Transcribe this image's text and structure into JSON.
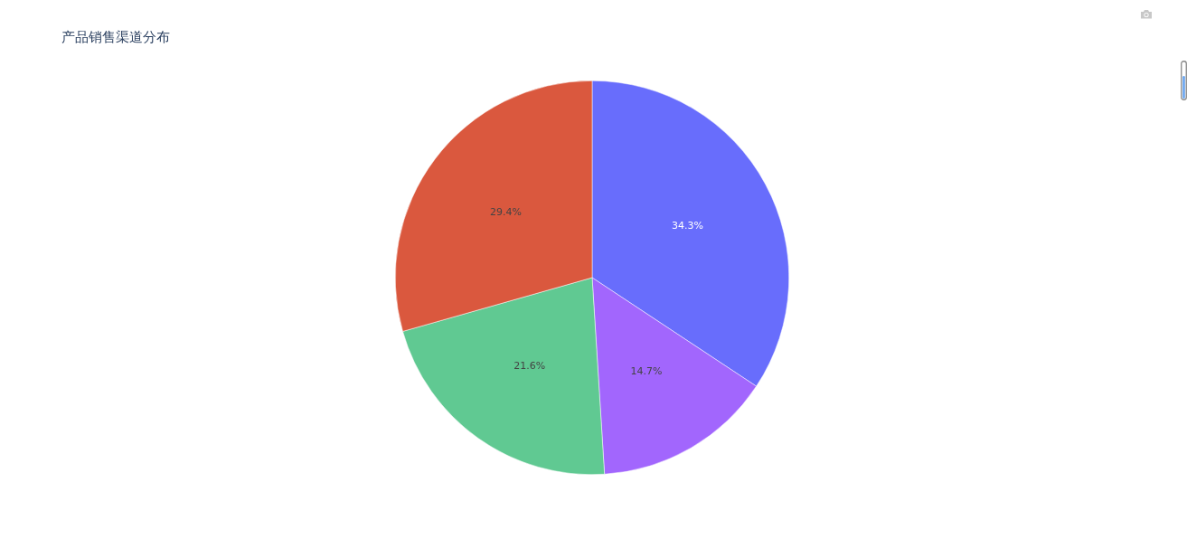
{
  "chart_data": {
    "type": "pie",
    "title": "产品销售渠道分布",
    "categories": [
      null,
      null,
      null,
      null
    ],
    "values": [
      34.3,
      14.7,
      21.6,
      29.4
    ],
    "value_labels": [
      "34.3%",
      "14.7%",
      "21.6%",
      "29.4%"
    ],
    "colors": [
      "#686dfc",
      "#a266fd",
      "#60c992",
      "#da583e"
    ],
    "legend": false
  }
}
